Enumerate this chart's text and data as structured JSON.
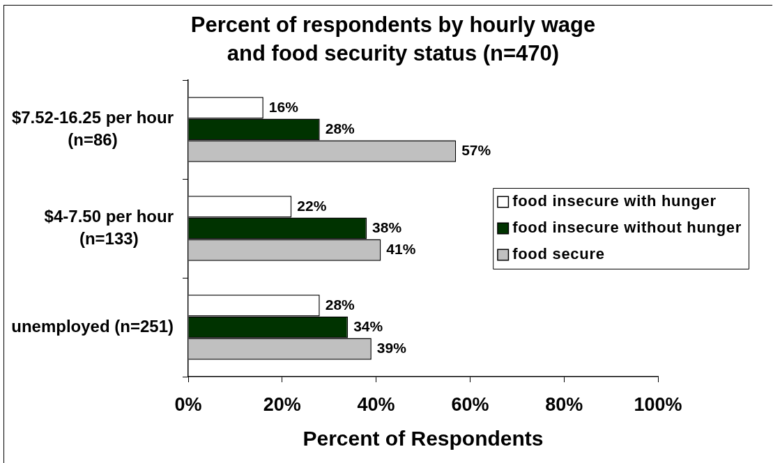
{
  "chart_data": {
    "type": "bar",
    "orientation": "horizontal",
    "title": "Percent of respondents by hourly wage and food security status (n=470)",
    "xlabel": "Percent of Respondents",
    "categories": [
      "$7.52-16.25 per hour (n=86)",
      "$4-7.50 per hour (n=133)",
      "unemployed (n=251)"
    ],
    "series": [
      {
        "name": "food insecure with hunger",
        "color": "#ffffff",
        "values": [
          16,
          22,
          28
        ],
        "value_labels": [
          "16%",
          "22%",
          "28%"
        ]
      },
      {
        "name": "food insecure without hunger",
        "color": "#003300",
        "values": [
          28,
          38,
          34
        ],
        "value_labels": [
          "28%",
          "38%",
          "34%"
        ]
      },
      {
        "name": "food secure",
        "color": "#c0c0c0",
        "values": [
          57,
          41,
          39
        ],
        "value_labels": [
          "57%",
          "41%",
          "39%"
        ]
      }
    ],
    "xlim": [
      0,
      100
    ],
    "xticks": [
      {
        "value": 0,
        "label": "0%"
      },
      {
        "value": 20,
        "label": "20%"
      },
      {
        "value": 40,
        "label": "40%"
      },
      {
        "value": 60,
        "label": "60%"
      },
      {
        "value": 80,
        "label": "80%"
      },
      {
        "value": 100,
        "label": "100%"
      }
    ],
    "grid": false,
    "legend": "right"
  }
}
